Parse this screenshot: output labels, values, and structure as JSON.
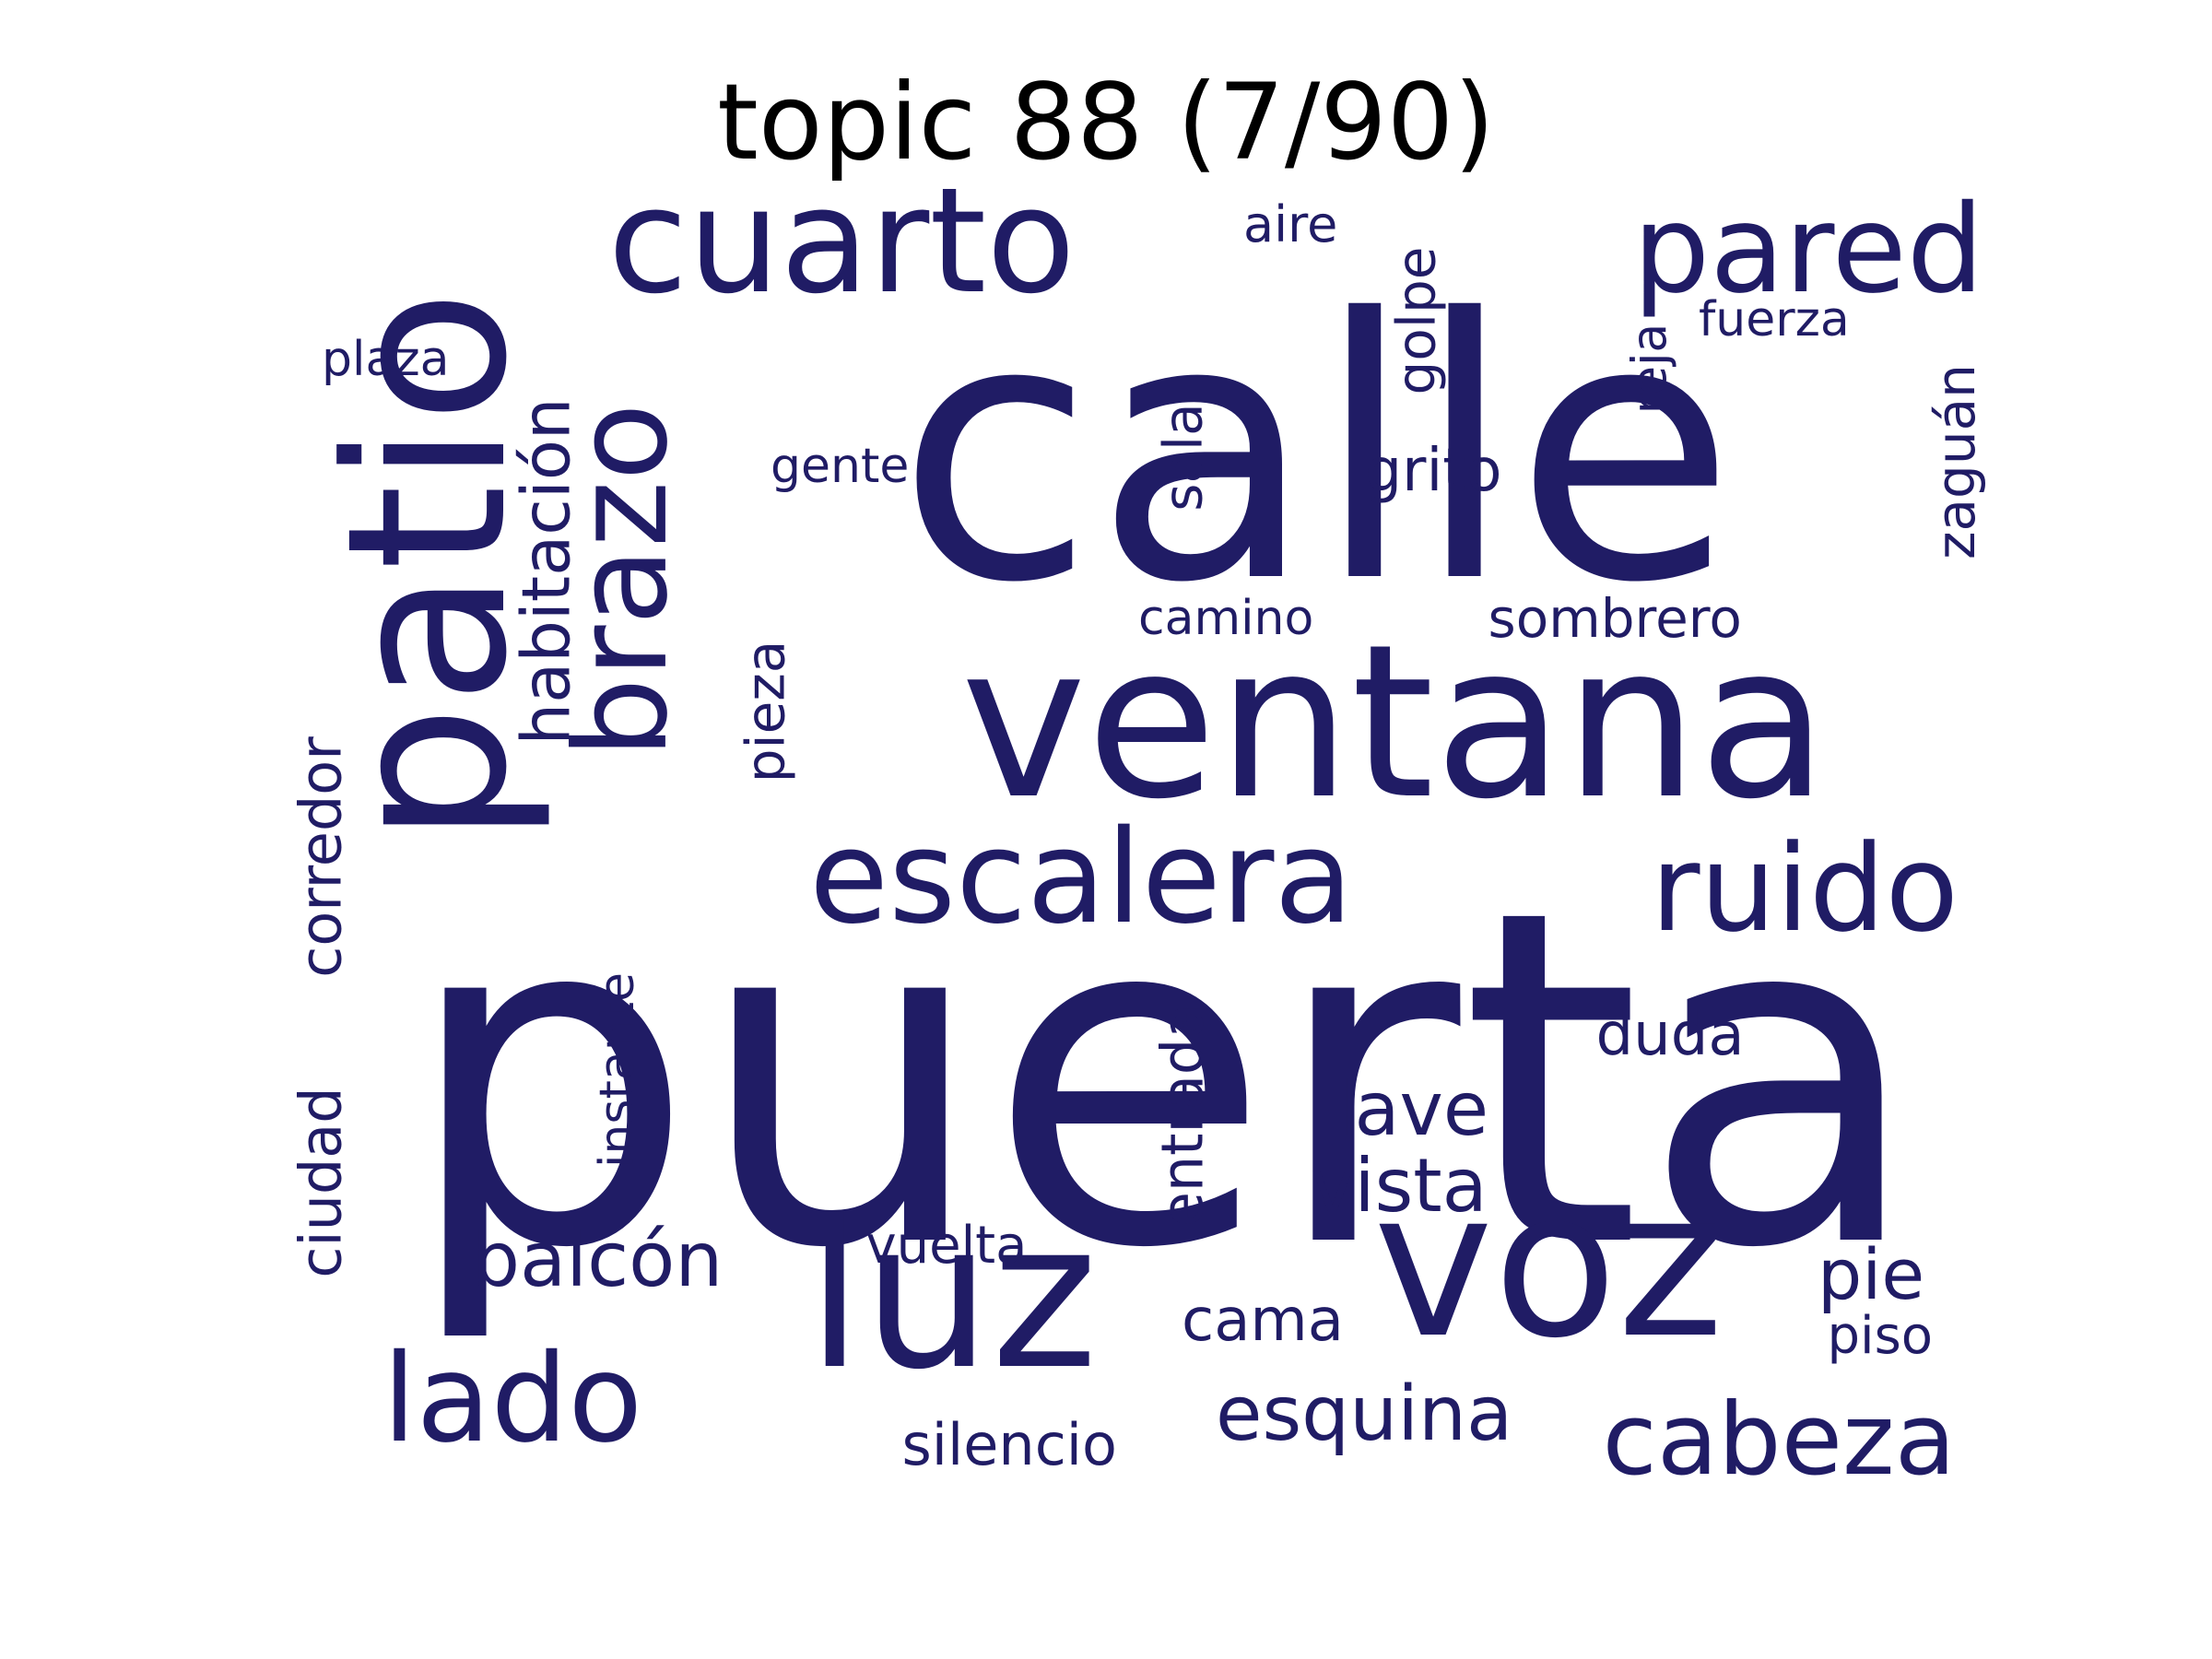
{
  "title": "topic 88 (7/90)",
  "colors": {
    "word": "#201c65",
    "title": "#000000",
    "background": "#ffffff"
  },
  "words": [
    {
      "key": "puerta",
      "text": "puerta"
    },
    {
      "key": "calle",
      "text": "calle"
    },
    {
      "key": "ventana",
      "text": "ventana"
    },
    {
      "key": "patio",
      "text": "patio"
    },
    {
      "key": "voz",
      "text": "voz"
    },
    {
      "key": "luz",
      "text": "luz"
    },
    {
      "key": "cuarto",
      "text": "cuarto"
    },
    {
      "key": "escalera",
      "text": "escalera"
    },
    {
      "key": "brazo",
      "text": "brazo"
    },
    {
      "key": "pared",
      "text": "pared"
    },
    {
      "key": "ruido",
      "text": "ruido"
    },
    {
      "key": "lado",
      "text": "lado"
    },
    {
      "key": "cabeza",
      "text": "cabeza"
    },
    {
      "key": "esquina",
      "text": "esquina"
    },
    {
      "key": "balcon",
      "text": "balcón"
    },
    {
      "key": "vista",
      "text": "vista"
    },
    {
      "key": "llave",
      "text": "llave"
    },
    {
      "key": "habitacion",
      "text": "habitación"
    },
    {
      "key": "ciudad",
      "text": "ciudad"
    },
    {
      "key": "corredor",
      "text": "corredor"
    },
    {
      "key": "entrada",
      "text": "entrada"
    },
    {
      "key": "pie",
      "text": "pie"
    },
    {
      "key": "zaguan",
      "text": "zaguán"
    },
    {
      "key": "golpe",
      "text": "golpe"
    },
    {
      "key": "grito",
      "text": "grito"
    },
    {
      "key": "sala",
      "text": "sala"
    },
    {
      "key": "pieza",
      "text": "pieza"
    },
    {
      "key": "instante",
      "text": "instante"
    },
    {
      "key": "silencio",
      "text": "silencio"
    },
    {
      "key": "sombrero",
      "text": "sombrero"
    },
    {
      "key": "cama",
      "text": "cama"
    },
    {
      "key": "duda",
      "text": "duda"
    },
    {
      "key": "vuelta",
      "text": "vuelta"
    },
    {
      "key": "camino",
      "text": "camino"
    },
    {
      "key": "reja",
      "text": "reja"
    },
    {
      "key": "fuerza",
      "text": "fuerza"
    },
    {
      "key": "gente",
      "text": "gente"
    },
    {
      "key": "aire",
      "text": "aire"
    },
    {
      "key": "plaza",
      "text": "plaza"
    },
    {
      "key": "piso",
      "text": "piso"
    }
  ]
}
